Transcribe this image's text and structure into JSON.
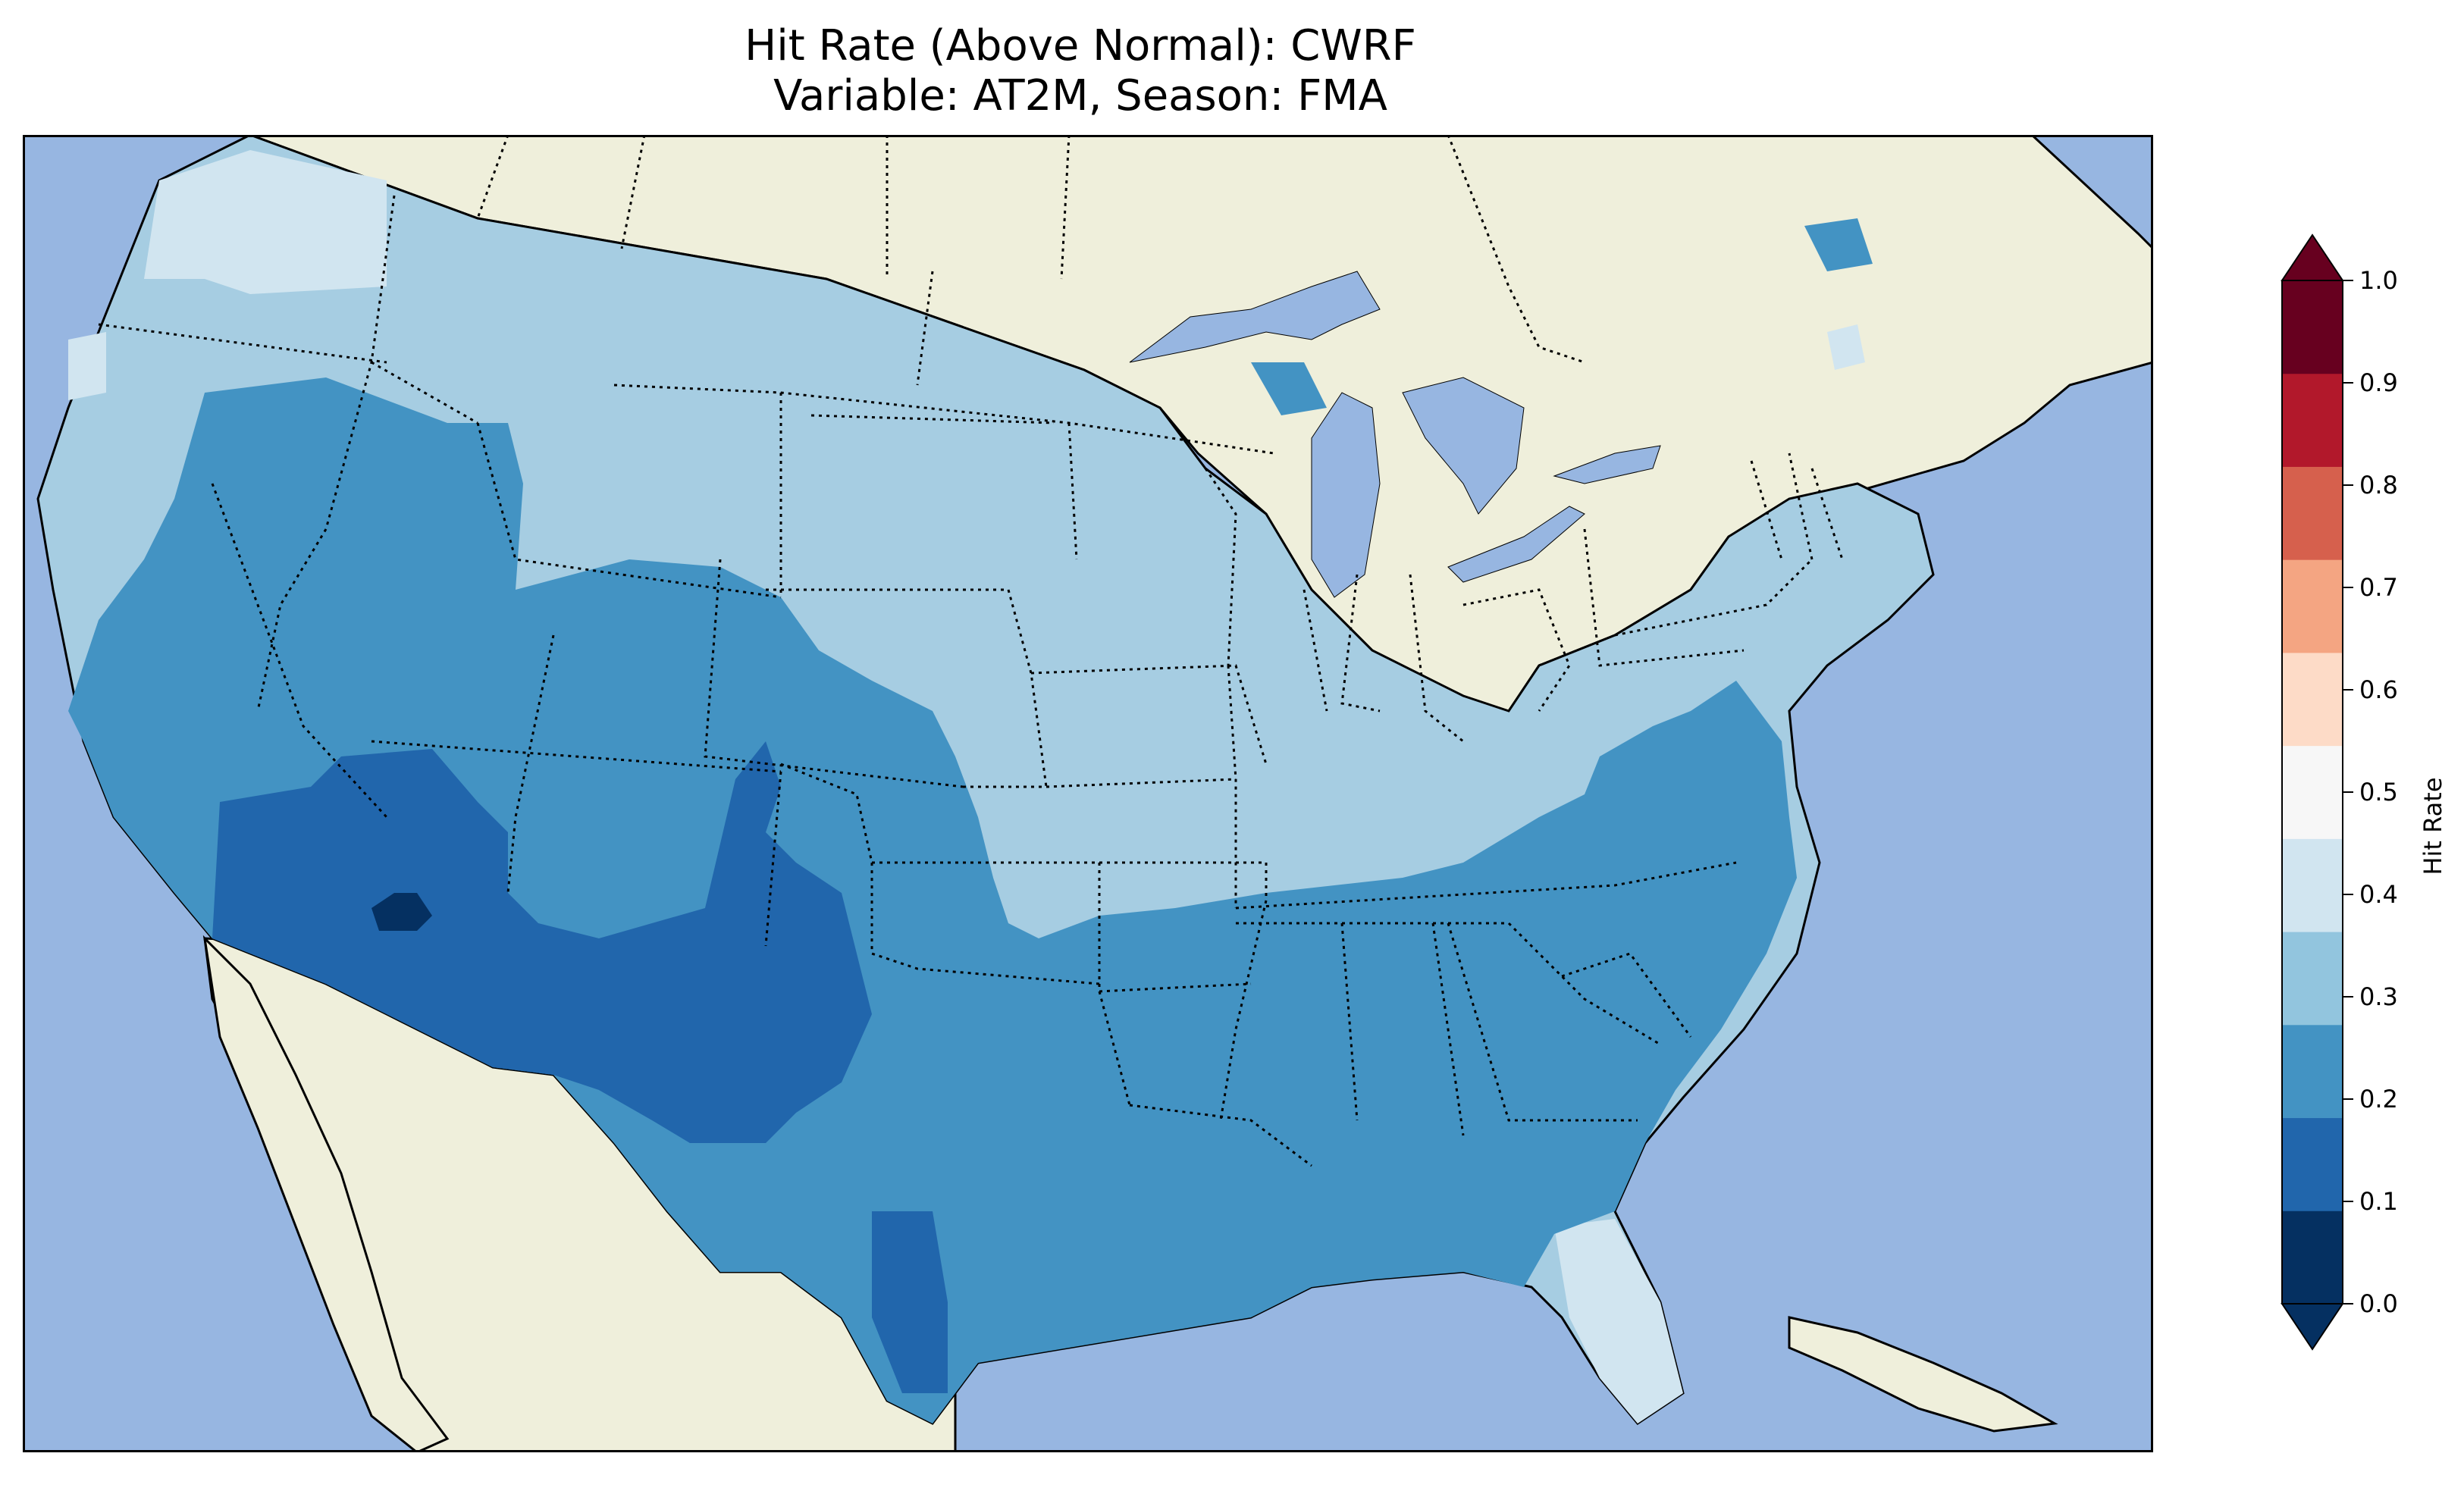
{
  "title_line1": "Hit Rate (Above Normal): CWRF",
  "title_line2": "Variable: AT2M, Season: FMA",
  "colorbar": {
    "label": "Hit Rate",
    "ticks": [
      "0.0",
      "0.1",
      "0.2",
      "0.3",
      "0.4",
      "0.5",
      "0.6",
      "0.7",
      "0.8",
      "0.9",
      "1.0"
    ],
    "colors": [
      "#053061",
      "#2166ac",
      "#4393c3",
      "#92c5de",
      "#d1e5f0",
      "#f7f7f7",
      "#fddbc7",
      "#f4a582",
      "#d6604d",
      "#b2182b",
      "#67001f"
    ],
    "under_color": "#053061",
    "over_color": "#67001f"
  },
  "map_colors": {
    "ocean": "#97b6e1",
    "land": "#efefdb",
    "lake": "#97b6e1"
  }
}
